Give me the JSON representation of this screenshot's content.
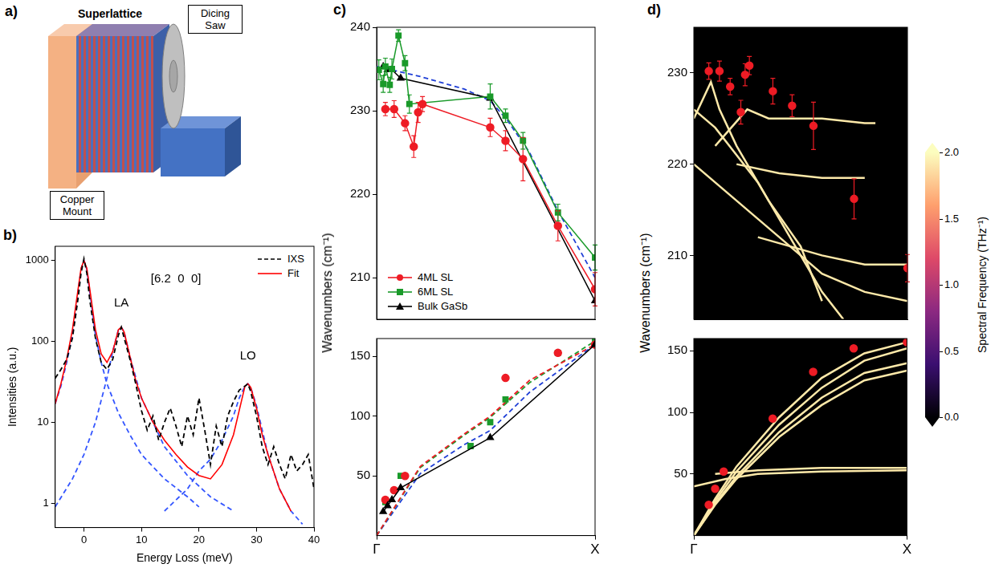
{
  "diagram": {
    "label": "a)",
    "texts": {
      "superlattice": "Superlattice",
      "saw": "Dicing Saw",
      "mount": "Copper Mount"
    }
  },
  "chart_data": [
    {
      "panel": "b)",
      "type": "line",
      "xlabel": "Energy Loss (meV)",
      "ylabel": "Intensities (a.u.)",
      "log": "y",
      "grid": false,
      "legend": "upper right",
      "xlim": [
        -5,
        40
      ],
      "xticks": [
        0,
        10,
        20,
        30,
        40
      ],
      "ylim": [
        0.5,
        1500
      ],
      "yticks": [
        1,
        10,
        100,
        1000
      ],
      "annotations": [
        {
          "text": "[6.2  0  0]",
          "x": 16,
          "y": 500
        },
        {
          "text": "LA",
          "x": 6.5,
          "y": 250
        },
        {
          "text": "LO",
          "x": 28.5,
          "y": 55
        }
      ],
      "series": [
        {
          "name": "IXS",
          "color": "#000000",
          "line_style": "dashed",
          "x": [
            -5,
            -4,
            -3,
            -2,
            -1,
            -0.5,
            0,
            0.5,
            1,
            2,
            3,
            4,
            5,
            6,
            6.5,
            7,
            8,
            9,
            10,
            11,
            12,
            13,
            14,
            15,
            16,
            17,
            18,
            19,
            20,
            21,
            22,
            23,
            24,
            25,
            26,
            27,
            28,
            28.5,
            29,
            30,
            31,
            32,
            33,
            34,
            35,
            36,
            37,
            38,
            39,
            40
          ],
          "values": [
            35,
            45,
            60,
            110,
            350,
            700,
            1050,
            700,
            330,
            110,
            55,
            45,
            60,
            120,
            150,
            110,
            60,
            30,
            14,
            8,
            12,
            6,
            10,
            15,
            9,
            5,
            12,
            7,
            20,
            8,
            3,
            9,
            5,
            12,
            18,
            25,
            28,
            30,
            24,
            12,
            5,
            3,
            5,
            3,
            2,
            4,
            2.5,
            3,
            4,
            1.5
          ]
        },
        {
          "name": "Fit",
          "color": "#ff0000",
          "line_style": "solid",
          "x": [
            -5,
            -4,
            -3,
            -2,
            -1,
            -0.5,
            0,
            0.5,
            1,
            2,
            3,
            4,
            5,
            6,
            6.5,
            7,
            8,
            9,
            10,
            12,
            14,
            16,
            18,
            20,
            22,
            24,
            26,
            27,
            28,
            28.5,
            29,
            30,
            31,
            32,
            34,
            36
          ],
          "values": [
            17,
            30,
            60,
            140,
            450,
            800,
            1000,
            800,
            450,
            140,
            70,
            55,
            75,
            140,
            150,
            130,
            65,
            33,
            20,
            10,
            6,
            4,
            2.8,
            2.2,
            2,
            3,
            7,
            14,
            28,
            30,
            27,
            15,
            7,
            4,
            1.5,
            0.8
          ]
        },
        {
          "color": "#3355ff",
          "line_style": "dashed",
          "x": [
            -5,
            -4,
            -3,
            -2,
            -1,
            -0.5,
            0,
            0.5,
            1,
            2,
            3,
            4,
            6,
            8,
            10,
            14,
            18,
            20
          ],
          "values": [
            17,
            28,
            55,
            120,
            420,
            780,
            1000,
            780,
            420,
            120,
            55,
            30,
            13,
            7,
            4,
            2,
            1.2,
            0.9
          ]
        },
        {
          "color": "#3355ff",
          "line_style": "dashed",
          "x": [
            -5,
            -2,
            0,
            2,
            4,
            5,
            6,
            6.5,
            7,
            8,
            10,
            14,
            18,
            22,
            26
          ],
          "values": [
            0.9,
            2,
            4,
            10,
            35,
            75,
            140,
            150,
            130,
            65,
            20,
            5,
            2.2,
            1.2,
            0.8
          ]
        },
        {
          "color": "#3355ff",
          "line_style": "dashed",
          "x": [
            14,
            18,
            20,
            22,
            24,
            26,
            27,
            28,
            28.5,
            29,
            30,
            31,
            32,
            34,
            36,
            38
          ],
          "values": [
            0.8,
            1.5,
            2.5,
            3.5,
            6,
            12,
            20,
            28,
            30,
            27,
            16,
            8,
            4,
            1.5,
            0.8,
            0.55
          ]
        }
      ]
    },
    {
      "panel": "c)",
      "type": "line",
      "ylabel": "Wavenumbers (cm⁻¹)",
      "grid": false,
      "legend": "lower left",
      "tick_labels": "y",
      "xlim": [
        0,
        1
      ],
      "ylim": [
        205,
        240
      ],
      "yticks": [
        210,
        220,
        230,
        240
      ],
      "series": [
        {
          "name": "4ML SL",
          "color": "#ee1c25",
          "marker": "circle",
          "line_style": "solid",
          "x": [
            0.04,
            0.08,
            0.13,
            0.17,
            0.19,
            0.21,
            0.52,
            0.59,
            0.67,
            0.83,
            1.0
          ],
          "values": [
            230.2,
            230.2,
            228.5,
            225.7,
            229.8,
            230.8,
            228.0,
            226.4,
            224.2,
            216.2,
            208.6
          ],
          "errors": [
            0.8,
            1.0,
            0.9,
            1.3,
            1.2,
            0.9,
            1.1,
            1.2,
            2.6,
            1.8,
            2.0
          ]
        },
        {
          "name": "6ML SL",
          "color": "#1a9a2a",
          "marker": "square",
          "line_style": "solid",
          "x": [
            0.01,
            0.03,
            0.04,
            0.06,
            0.07,
            0.1,
            0.13,
            0.15,
            0.52,
            0.59,
            0.67,
            0.83,
            1.0
          ],
          "values": [
            234.9,
            233.2,
            235.3,
            233.1,
            235.0,
            239.0,
            235.7,
            230.8,
            231.7,
            229.4,
            226.4,
            217.8,
            212.4
          ],
          "errors": [
            1.2,
            1.0,
            1.0,
            0.9,
            1.2,
            0.7,
            0.9,
            1.1,
            1.5,
            0.8,
            1.0,
            1.0,
            1.5
          ]
        },
        {
          "name": "Bulk GaSb",
          "color": "#000000",
          "marker": "triangle",
          "line_style": "solid",
          "x": [
            0.03,
            0.05,
            0.07,
            0.11,
            0.52,
            1.0
          ],
          "values": [
            235.3,
            234.9,
            234.9,
            233.9,
            231.5,
            207.2
          ]
        },
        {
          "color": "#1f3fd6",
          "line_style": "dashed",
          "x": [
            0,
            0.2,
            0.4,
            0.52,
            0.6,
            0.7,
            0.83,
            1.0
          ],
          "values": [
            235.3,
            234.1,
            232.6,
            231.2,
            228.8,
            225.0,
            218.0,
            210.0
          ]
        }
      ]
    },
    {
      "type": "line",
      "grid": false,
      "xlim": [
        0,
        1
      ],
      "xticks": [
        {
          "value": 0,
          "label": "Γ"
        },
        {
          "value": 1,
          "label": "X"
        }
      ],
      "ylim": [
        0,
        165
      ],
      "yticks": [
        50,
        100,
        150
      ],
      "series": [
        {
          "color": "#ee1c25",
          "line_style": "dashed",
          "x": [
            0,
            0.2,
            0.4,
            0.52,
            0.7,
            1.0
          ],
          "values": [
            0,
            58,
            85,
            100,
            130,
            160
          ]
        },
        {
          "color": "#1a9a2a",
          "line_style": "dashed",
          "x": [
            0,
            0.2,
            0.4,
            0.52,
            0.7,
            1.0
          ],
          "values": [
            0,
            57,
            84,
            99,
            128,
            163
          ]
        },
        {
          "color": "#1f3fd6",
          "line_style": "dashed",
          "x": [
            0,
            0.2,
            0.4,
            0.52,
            0.7,
            1.0
          ],
          "values": [
            0,
            52,
            76,
            88,
            120,
            160
          ]
        },
        {
          "color": "#000000",
          "marker": "triangle",
          "line_style": "solid",
          "x": [
            0.03,
            0.05,
            0.07,
            0.11,
            0.52,
            1.0
          ],
          "values": [
            20,
            25,
            30,
            40,
            82,
            160
          ]
        },
        {
          "color": "#ee1c25",
          "marker": "circle",
          "line_style": "none",
          "x": [
            0.04,
            0.08,
            0.13,
            0.59,
            0.83,
            1.0
          ],
          "values": [
            30,
            38,
            50,
            132,
            153,
            160
          ]
        },
        {
          "color": "#1a9a2a",
          "marker": "square",
          "line_style": "none",
          "x": [
            0.04,
            0.11,
            0.43,
            0.52,
            0.59,
            0.83,
            1.0
          ],
          "values": [
            28,
            50,
            75,
            95,
            114,
            153,
            163
          ]
        }
      ]
    },
    {
      "panel": "d)",
      "type": "line",
      "ylabel": "Wavenumbers (cm⁻¹)",
      "grid": false,
      "tick_labels": "y",
      "xlim": [
        0,
        1
      ],
      "ylim": [
        203,
        235
      ],
      "yticks": [
        210,
        220,
        230
      ],
      "colorbar": {
        "label": "Spectral Frequency (THz⁻¹)",
        "range": [
          0,
          2
        ],
        "ticks": [
          {
            "value": 0,
            "label": "0.0"
          },
          {
            "value": 0.5,
            "label": "0.5"
          },
          {
            "value": 1,
            "label": "1.0"
          },
          {
            "value": 1.5,
            "label": "1.5"
          },
          {
            "value": 2,
            "label": "2.0"
          }
        ]
      },
      "series": [
        {
          "color": "#fde9a9",
          "line_style": "solid",
          "x": [
            0,
            0.1,
            0.2,
            0.3,
            0.4,
            0.5,
            0.6,
            0.7
          ],
          "values": [
            226,
            224,
            221,
            218,
            214,
            210,
            206,
            203
          ]
        },
        {
          "color": "#fde9a9",
          "line_style": "solid",
          "x": [
            0,
            0.08,
            0.12,
            0.2,
            0.35,
            0.5,
            0.6
          ],
          "values": [
            225,
            229,
            226,
            222,
            216,
            211,
            205
          ]
        },
        {
          "color": "#fde9a9",
          "line_style": "solid",
          "x": [
            0.1,
            0.25,
            0.35,
            0.6,
            0.8,
            0.85
          ],
          "values": [
            222,
            226,
            225,
            225,
            224.5,
            224.5
          ]
        },
        {
          "color": "#fde9a9",
          "line_style": "solid",
          "x": [
            0.2,
            0.4,
            0.6,
            0.8
          ],
          "values": [
            220,
            219,
            218.5,
            218.5
          ]
        },
        {
          "color": "#fde9a9",
          "line_style": "solid",
          "x": [
            0.3,
            0.6,
            0.8,
            1.0
          ],
          "values": [
            212,
            210,
            209,
            209
          ]
        },
        {
          "color": "#fde9a9",
          "line_style": "solid",
          "x": [
            0,
            0.3,
            0.5,
            0.6,
            0.8,
            1.0
          ],
          "values": [
            220,
            214,
            210,
            208,
            206,
            205
          ]
        },
        {
          "color": "#ee1c25",
          "marker": "circle",
          "line_style": "none",
          "x": [
            0.07,
            0.12,
            0.17,
            0.22,
            0.24,
            0.26,
            0.37,
            0.46,
            0.56,
            0.75,
            1.0
          ],
          "values": [
            230.2,
            230.2,
            228.5,
            225.7,
            229.8,
            230.8,
            228.0,
            226.4,
            224.2,
            216.2,
            208.6
          ],
          "errors": [
            0.9,
            1.1,
            0.9,
            1.3,
            1.2,
            1.0,
            1.4,
            1.2,
            2.6,
            2.2,
            1.5
          ]
        }
      ]
    },
    {
      "type": "line",
      "grid": false,
      "xlim": [
        0,
        1
      ],
      "xticks": [
        {
          "value": 0,
          "label": "Γ"
        },
        {
          "value": 1,
          "label": "X"
        }
      ],
      "ylim": [
        0,
        160
      ],
      "yticks": [
        50,
        100,
        150
      ],
      "series": [
        {
          "color": "#fde9a9",
          "line_style": "solid",
          "x": [
            0,
            0.1,
            0.2,
            0.4,
            0.6,
            0.8,
            1.0
          ],
          "values": [
            0,
            28,
            52,
            90,
            120,
            142,
            152
          ]
        },
        {
          "color": "#fde9a9",
          "line_style": "solid",
          "x": [
            0,
            0.1,
            0.2,
            0.4,
            0.6,
            0.8,
            1.0
          ],
          "values": [
            0,
            30,
            56,
            96,
            128,
            148,
            157
          ]
        },
        {
          "color": "#fde9a9",
          "line_style": "solid",
          "x": [
            0,
            0.1,
            0.2,
            0.4,
            0.6,
            0.8,
            1.0
          ],
          "values": [
            0,
            26,
            48,
            84,
            112,
            132,
            140
          ]
        },
        {
          "color": "#fde9a9",
          "line_style": "solid",
          "x": [
            0,
            0.1,
            0.2,
            0.4,
            0.6,
            0.8,
            1.0
          ],
          "values": [
            0,
            25,
            46,
            80,
            106,
            126,
            134
          ]
        },
        {
          "color": "#fde9a9",
          "line_style": "solid",
          "x": [
            0,
            0.15,
            0.3,
            0.6,
            1.0
          ],
          "values": [
            40,
            46,
            50,
            52,
            53
          ]
        },
        {
          "color": "#fde9a9",
          "line_style": "solid",
          "x": [
            0.1,
            0.3,
            0.6,
            1.0
          ],
          "values": [
            50,
            53,
            55,
            55
          ]
        },
        {
          "color": "#ee1c25",
          "marker": "circle",
          "line_style": "none",
          "x": [
            0.07,
            0.1,
            0.14,
            0.37,
            0.56,
            0.75,
            1.0
          ],
          "values": [
            25,
            38,
            52,
            95,
            133,
            152,
            157
          ]
        }
      ]
    }
  ]
}
